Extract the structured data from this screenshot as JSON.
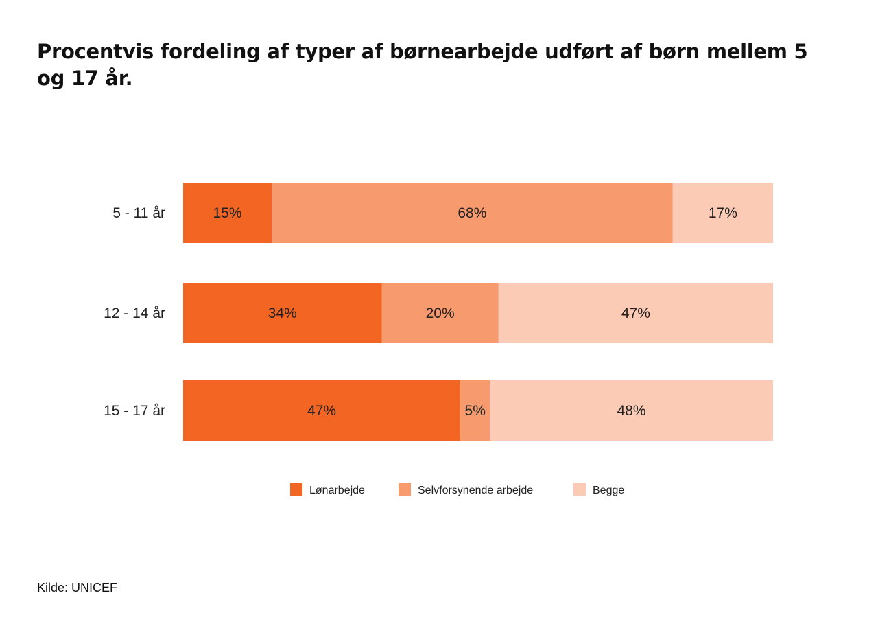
{
  "chart_data": {
    "type": "bar",
    "orientation": "horizontal",
    "stacked": true,
    "title": "Procentvis fordeling af typer af børnearbejde udført af børn mellem 5 og 17 år.",
    "categories": [
      "5 - 11 år",
      "12 - 14 år",
      "15 - 17 år"
    ],
    "series": [
      {
        "name": "Lønarbejde",
        "values": [
          15,
          34,
          47
        ],
        "labels": [
          "15%",
          "34%",
          "47%"
        ],
        "color": "#f26522"
      },
      {
        "name": "Selvforsynende arbejde",
        "values": [
          68,
          20,
          5
        ],
        "labels": [
          "68%",
          "20%",
          "5%"
        ],
        "color": "#f79a6e"
      },
      {
        "name": "Begge",
        "values": [
          17,
          47,
          48
        ],
        "labels": [
          "17%",
          "47%",
          "48%"
        ],
        "color": "#fbcbb6"
      }
    ],
    "xlim": [
      0,
      100
    ],
    "grid": false,
    "legend_position": "bottom"
  },
  "source": "Kilde: UNICEF"
}
